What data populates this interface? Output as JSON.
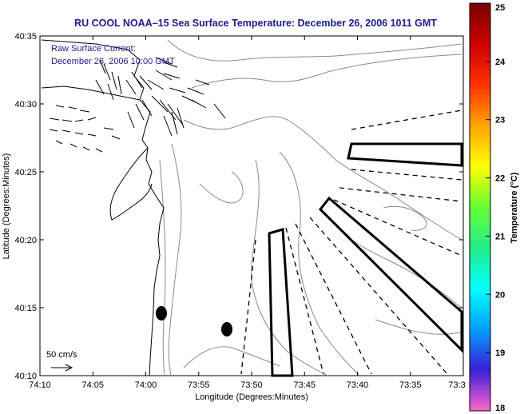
{
  "title": "RU COOL  NOAA–15  Sea Surface Temperature:  December 26, 2006 1011 GMT",
  "legend": {
    "line1": "Raw Surface Current:",
    "line2": "December 26, 2006 10:00 GMT"
  },
  "scale_label": "50 cm/s",
  "xlabel": "Longitude (Degrees:Minutes)",
  "ylabel": "Latitude (Degrees:Minutes)",
  "x_ticks": [
    "74:10",
    "74:05",
    "74:00",
    "73:55",
    "73:50",
    "73:45",
    "73:40",
    "73:35",
    "73:3"
  ],
  "y_ticks": [
    "40:35",
    "40:30",
    "40:25",
    "40:20",
    "40:15",
    "40:10"
  ],
  "colorbar": {
    "label": "Temperature (°C)",
    "ticks": [
      "25",
      "24",
      "23",
      "22",
      "21",
      "20",
      "19",
      "18"
    ],
    "range": [
      18,
      25
    ],
    "colors": [
      "#ff66cc",
      "#3b1fd8",
      "#00a0ff",
      "#00ffff",
      "#22ee88",
      "#66ff33",
      "#ffff00",
      "#ffa500",
      "#ff3300",
      "#cc0000",
      "#7a0000"
    ]
  }
}
